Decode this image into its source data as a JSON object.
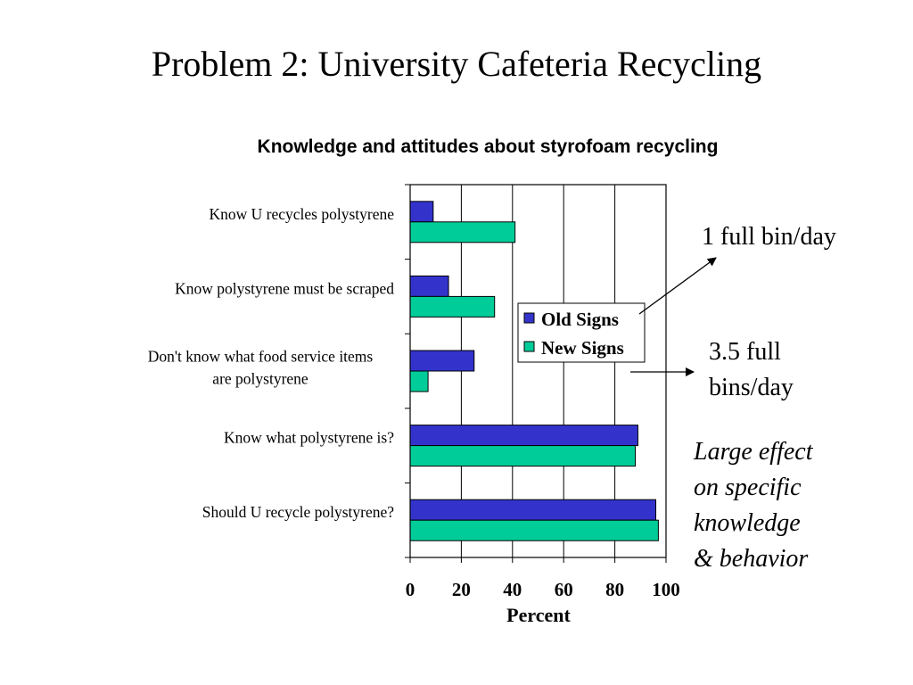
{
  "slide": {
    "title": "Problem 2: University Cafeteria Recycling"
  },
  "annotations": {
    "old_signs_result": "1 full bin/day",
    "new_signs_result": [
      "3.5 full",
      "bins/day"
    ],
    "effect_note": [
      "Large effect",
      "on specific",
      "knowledge",
      "& behavior"
    ]
  },
  "colors": {
    "old_signs": "#3333cc",
    "new_signs": "#00cc99"
  },
  "chart_data": {
    "type": "bar",
    "orientation": "horizontal",
    "title": "Knowledge and attitudes about styrofoam recycling",
    "xlabel": "Percent",
    "ylabel": "",
    "xlim": [
      0,
      100
    ],
    "x_ticks": [
      "0",
      "20",
      "40",
      "60",
      "80",
      "100"
    ],
    "grid": "vertical",
    "legend_position": "center-right",
    "categories": [
      [
        "Know U recycles polystyrene"
      ],
      [
        "Know polystyrene must be scraped"
      ],
      [
        "Don't know what food service items",
        "are polystyrene"
      ],
      [
        "Know what polystyrene is?"
      ],
      [
        "Should U recycle polystyrene?"
      ]
    ],
    "series": [
      {
        "name": "Old Signs",
        "values": [
          9,
          15,
          25,
          89,
          96
        ]
      },
      {
        "name": "New Signs",
        "values": [
          41,
          33,
          7,
          88,
          97
        ]
      }
    ]
  }
}
